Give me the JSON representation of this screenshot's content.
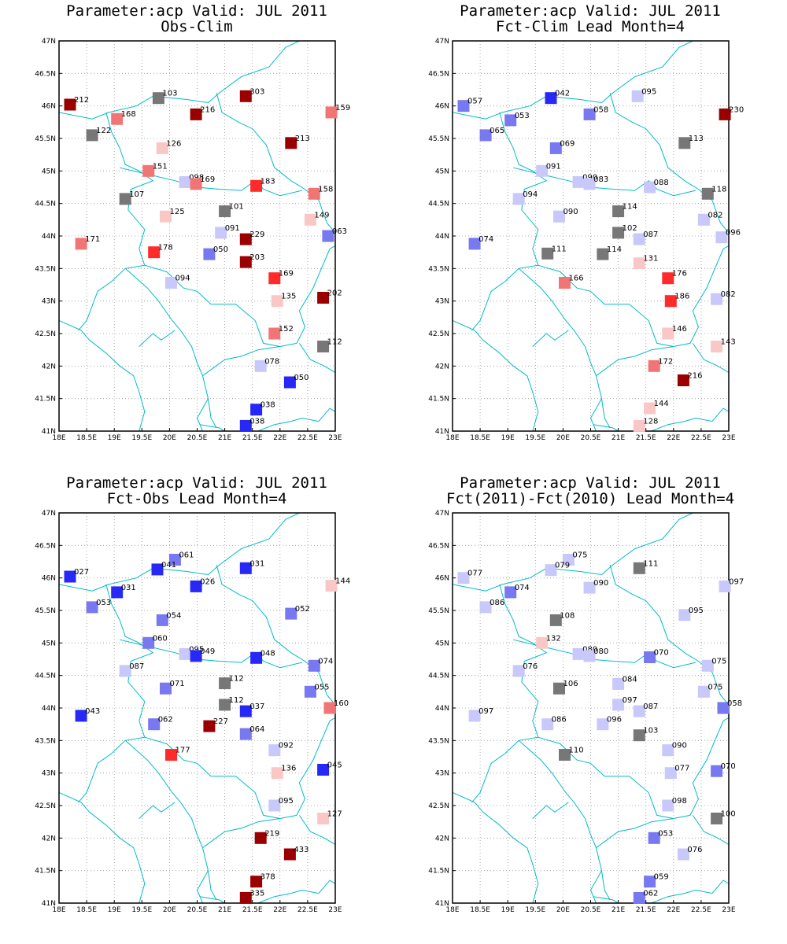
{
  "colors": {
    "coast": "#00bcc8",
    "grid": "#9a9a9a",
    "scale": {
      "dred": "#9a0000",
      "red": "#ff2a2a",
      "mred": "#f27575",
      "lred": "#fac7c7",
      "gray": "#777777",
      "lblue": "#c8c8fa",
      "mblue": "#7878f0",
      "blue": "#2828f6"
    }
  },
  "axes": {
    "lon_min": 18,
    "lon_max": 23,
    "lat_min": 41,
    "lat_max": 47,
    "xticks": [
      "18E",
      "18.5E",
      "19E",
      "19.5E",
      "20E",
      "20.5E",
      "21E",
      "21.5E",
      "22E",
      "22.5E",
      "23E"
    ],
    "yticks": [
      "41N",
      "41.5N",
      "42N",
      "42.5N",
      "43N",
      "43.5N",
      "44N",
      "44.5N",
      "45N",
      "45.5N",
      "46N",
      "46.5N",
      "47N"
    ]
  },
  "panels": [
    {
      "title1": "Parameter:acp Valid: JUL 2011",
      "title2": "Obs-Clim",
      "stations": [
        {
          "lon": 18.2,
          "lat": 46.02,
          "label": "212",
          "cls": "dred"
        },
        {
          "lon": 19.8,
          "lat": 46.12,
          "label": "103",
          "cls": "gray"
        },
        {
          "lon": 21.38,
          "lat": 46.15,
          "label": "303",
          "cls": "dred"
        },
        {
          "lon": 22.93,
          "lat": 45.9,
          "label": "159",
          "cls": "mred"
        },
        {
          "lon": 19.05,
          "lat": 45.8,
          "label": "168",
          "cls": "mred"
        },
        {
          "lon": 20.48,
          "lat": 45.87,
          "label": "216",
          "cls": "dred"
        },
        {
          "lon": 18.6,
          "lat": 45.55,
          "label": "122",
          "cls": "gray"
        },
        {
          "lon": 22.2,
          "lat": 45.43,
          "label": "213",
          "cls": "dred"
        },
        {
          "lon": 19.87,
          "lat": 45.35,
          "label": "126",
          "cls": "lred"
        },
        {
          "lon": 19.62,
          "lat": 45.0,
          "label": "151",
          "cls": "mred"
        },
        {
          "lon": 20.28,
          "lat": 44.83,
          "label": "098",
          "cls": "lblue"
        },
        {
          "lon": 20.48,
          "lat": 44.8,
          "label": "169",
          "cls": "mred"
        },
        {
          "lon": 21.57,
          "lat": 44.77,
          "label": "183",
          "cls": "red"
        },
        {
          "lon": 22.62,
          "lat": 44.65,
          "label": "158",
          "cls": "mred"
        },
        {
          "lon": 19.2,
          "lat": 44.57,
          "label": "107",
          "cls": "gray"
        },
        {
          "lon": 19.93,
          "lat": 44.3,
          "label": "125",
          "cls": "lred"
        },
        {
          "lon": 21.0,
          "lat": 44.38,
          "label": "101",
          "cls": "gray"
        },
        {
          "lon": 22.55,
          "lat": 44.25,
          "label": "149",
          "cls": "lred"
        },
        {
          "lon": 20.93,
          "lat": 44.05,
          "label": "091",
          "cls": "lblue"
        },
        {
          "lon": 21.38,
          "lat": 43.95,
          "label": "229",
          "cls": "dred"
        },
        {
          "lon": 22.87,
          "lat": 44.0,
          "label": "063",
          "cls": "mblue"
        },
        {
          "lon": 18.4,
          "lat": 43.88,
          "label": "171",
          "cls": "mred"
        },
        {
          "lon": 19.72,
          "lat": 43.75,
          "label": "178",
          "cls": "red"
        },
        {
          "lon": 20.72,
          "lat": 43.72,
          "label": "050",
          "cls": "mblue"
        },
        {
          "lon": 21.38,
          "lat": 43.6,
          "label": "203",
          "cls": "dred"
        },
        {
          "lon": 21.9,
          "lat": 43.35,
          "label": "169",
          "cls": "red"
        },
        {
          "lon": 20.03,
          "lat": 43.28,
          "label": "094",
          "cls": "lblue"
        },
        {
          "lon": 21.95,
          "lat": 43.0,
          "label": "135",
          "cls": "lred"
        },
        {
          "lon": 22.78,
          "lat": 43.05,
          "label": "202",
          "cls": "dred"
        },
        {
          "lon": 21.9,
          "lat": 42.5,
          "label": "152",
          "cls": "mred"
        },
        {
          "lon": 22.78,
          "lat": 42.3,
          "label": "112",
          "cls": "gray"
        },
        {
          "lon": 21.65,
          "lat": 42.0,
          "label": "078",
          "cls": "lblue"
        },
        {
          "lon": 22.18,
          "lat": 41.75,
          "label": "050",
          "cls": "blue"
        },
        {
          "lon": 21.57,
          "lat": 41.33,
          "label": "038",
          "cls": "blue"
        },
        {
          "lon": 21.38,
          "lat": 41.08,
          "label": "038",
          "cls": "blue"
        }
      ]
    },
    {
      "title1": "Parameter:acp Valid: JUL 2011",
      "title2": "Fct-Clim Lead Month=4",
      "stations": [
        {
          "lon": 18.2,
          "lat": 46.0,
          "label": "057",
          "cls": "mblue"
        },
        {
          "lon": 19.78,
          "lat": 46.12,
          "label": "042",
          "cls": "blue"
        },
        {
          "lon": 21.35,
          "lat": 46.15,
          "label": "095",
          "cls": "lblue"
        },
        {
          "lon": 22.93,
          "lat": 45.87,
          "label": "230",
          "cls": "dred"
        },
        {
          "lon": 19.05,
          "lat": 45.78,
          "label": "053",
          "cls": "mblue"
        },
        {
          "lon": 20.48,
          "lat": 45.87,
          "label": "058",
          "cls": "mblue"
        },
        {
          "lon": 18.6,
          "lat": 45.55,
          "label": "065",
          "cls": "mblue"
        },
        {
          "lon": 22.2,
          "lat": 45.43,
          "label": "113",
          "cls": "gray"
        },
        {
          "lon": 19.87,
          "lat": 45.35,
          "label": "069",
          "cls": "mblue"
        },
        {
          "lon": 19.62,
          "lat": 45.0,
          "label": "091",
          "cls": "lblue"
        },
        {
          "lon": 20.28,
          "lat": 44.83,
          "label": "090",
          "cls": "lblue"
        },
        {
          "lon": 20.48,
          "lat": 44.8,
          "label": "083",
          "cls": "lblue"
        },
        {
          "lon": 21.57,
          "lat": 44.75,
          "label": "088",
          "cls": "lblue"
        },
        {
          "lon": 22.62,
          "lat": 44.65,
          "label": "118",
          "cls": "gray"
        },
        {
          "lon": 19.2,
          "lat": 44.57,
          "label": "094",
          "cls": "lblue"
        },
        {
          "lon": 19.93,
          "lat": 44.3,
          "label": "090",
          "cls": "lblue"
        },
        {
          "lon": 21.0,
          "lat": 44.38,
          "label": "114",
          "cls": "gray"
        },
        {
          "lon": 22.55,
          "lat": 44.25,
          "label": "082",
          "cls": "lblue"
        },
        {
          "lon": 21.0,
          "lat": 44.05,
          "label": "102",
          "cls": "gray"
        },
        {
          "lon": 21.38,
          "lat": 43.95,
          "label": "087",
          "cls": "lblue"
        },
        {
          "lon": 22.87,
          "lat": 43.98,
          "label": "096",
          "cls": "lblue"
        },
        {
          "lon": 18.4,
          "lat": 43.88,
          "label": "074",
          "cls": "mblue"
        },
        {
          "lon": 19.72,
          "lat": 43.73,
          "label": "111",
          "cls": "gray"
        },
        {
          "lon": 20.72,
          "lat": 43.72,
          "label": "114",
          "cls": "gray"
        },
        {
          "lon": 21.38,
          "lat": 43.58,
          "label": "131",
          "cls": "lred"
        },
        {
          "lon": 21.9,
          "lat": 43.35,
          "label": "176",
          "cls": "red"
        },
        {
          "lon": 20.03,
          "lat": 43.28,
          "label": "166",
          "cls": "mred"
        },
        {
          "lon": 21.95,
          "lat": 43.0,
          "label": "186",
          "cls": "red"
        },
        {
          "lon": 22.78,
          "lat": 43.03,
          "label": "082",
          "cls": "lblue"
        },
        {
          "lon": 21.9,
          "lat": 42.5,
          "label": "146",
          "cls": "lred"
        },
        {
          "lon": 22.78,
          "lat": 42.3,
          "label": "143",
          "cls": "lred"
        },
        {
          "lon": 21.65,
          "lat": 42.0,
          "label": "172",
          "cls": "mred"
        },
        {
          "lon": 22.18,
          "lat": 41.78,
          "label": "216",
          "cls": "dred"
        },
        {
          "lon": 21.57,
          "lat": 41.35,
          "label": "144",
          "cls": "lred"
        },
        {
          "lon": 21.38,
          "lat": 41.08,
          "label": "128",
          "cls": "lred"
        }
      ]
    },
    {
      "title1": "Parameter:acp Valid: JUL 2011",
      "title2": "Fct-Obs Lead Month=4",
      "stations": [
        {
          "lon": 18.2,
          "lat": 46.02,
          "label": "027",
          "cls": "blue"
        },
        {
          "lon": 20.1,
          "lat": 46.28,
          "label": "061",
          "cls": "mblue"
        },
        {
          "lon": 19.78,
          "lat": 46.13,
          "label": "041",
          "cls": "blue"
        },
        {
          "lon": 21.38,
          "lat": 46.15,
          "label": "031",
          "cls": "blue"
        },
        {
          "lon": 22.93,
          "lat": 45.88,
          "label": "144",
          "cls": "lred"
        },
        {
          "lon": 19.05,
          "lat": 45.78,
          "label": "031",
          "cls": "blue"
        },
        {
          "lon": 20.48,
          "lat": 45.87,
          "label": "026",
          "cls": "blue"
        },
        {
          "lon": 18.6,
          "lat": 45.55,
          "label": "053",
          "cls": "mblue"
        },
        {
          "lon": 22.2,
          "lat": 45.45,
          "label": "052",
          "cls": "mblue"
        },
        {
          "lon": 19.87,
          "lat": 45.35,
          "label": "054",
          "cls": "mblue"
        },
        {
          "lon": 19.62,
          "lat": 45.0,
          "label": "060",
          "cls": "mblue"
        },
        {
          "lon": 20.28,
          "lat": 44.83,
          "label": "095",
          "cls": "lblue"
        },
        {
          "lon": 20.48,
          "lat": 44.8,
          "label": "049",
          "cls": "blue"
        },
        {
          "lon": 21.57,
          "lat": 44.77,
          "label": "048",
          "cls": "blue"
        },
        {
          "lon": 22.62,
          "lat": 44.65,
          "label": "074",
          "cls": "mblue"
        },
        {
          "lon": 19.2,
          "lat": 44.57,
          "label": "087",
          "cls": "lblue"
        },
        {
          "lon": 19.93,
          "lat": 44.3,
          "label": "071",
          "cls": "mblue"
        },
        {
          "lon": 21.0,
          "lat": 44.38,
          "label": "112",
          "cls": "gray"
        },
        {
          "lon": 22.55,
          "lat": 44.25,
          "label": "055",
          "cls": "mblue"
        },
        {
          "lon": 21.0,
          "lat": 44.05,
          "label": "112",
          "cls": "gray"
        },
        {
          "lon": 21.38,
          "lat": 43.95,
          "label": "037",
          "cls": "blue"
        },
        {
          "lon": 22.9,
          "lat": 44.0,
          "label": "160",
          "cls": "mred"
        },
        {
          "lon": 18.4,
          "lat": 43.88,
          "label": "043",
          "cls": "blue"
        },
        {
          "lon": 19.72,
          "lat": 43.75,
          "label": "062",
          "cls": "mblue"
        },
        {
          "lon": 20.72,
          "lat": 43.72,
          "label": "227",
          "cls": "dred"
        },
        {
          "lon": 21.38,
          "lat": 43.6,
          "label": "064",
          "cls": "mblue"
        },
        {
          "lon": 21.9,
          "lat": 43.35,
          "label": "092",
          "cls": "lblue"
        },
        {
          "lon": 20.03,
          "lat": 43.28,
          "label": "177",
          "cls": "red"
        },
        {
          "lon": 21.95,
          "lat": 43.0,
          "label": "136",
          "cls": "lred"
        },
        {
          "lon": 22.78,
          "lat": 43.05,
          "label": "045",
          "cls": "blue"
        },
        {
          "lon": 21.9,
          "lat": 42.5,
          "label": "095",
          "cls": "lblue"
        },
        {
          "lon": 22.78,
          "lat": 42.3,
          "label": "127",
          "cls": "lred"
        },
        {
          "lon": 21.65,
          "lat": 42.0,
          "label": "219",
          "cls": "dred"
        },
        {
          "lon": 22.18,
          "lat": 41.75,
          "label": "433",
          "cls": "dred"
        },
        {
          "lon": 21.57,
          "lat": 41.33,
          "label": "378",
          "cls": "dred"
        },
        {
          "lon": 21.38,
          "lat": 41.08,
          "label": "335",
          "cls": "dred"
        }
      ]
    },
    {
      "title1": "Parameter:acp Valid: JUL 2011",
      "title2": "Fct(2011)-Fct(2010) Lead Month=4",
      "stations": [
        {
          "lon": 18.2,
          "lat": 46.0,
          "label": "077",
          "cls": "lblue"
        },
        {
          "lon": 20.1,
          "lat": 46.28,
          "label": "075",
          "cls": "lblue"
        },
        {
          "lon": 19.78,
          "lat": 46.12,
          "label": "079",
          "cls": "lblue"
        },
        {
          "lon": 21.38,
          "lat": 46.15,
          "label": "111",
          "cls": "gray"
        },
        {
          "lon": 22.93,
          "lat": 45.87,
          "label": "097",
          "cls": "lblue"
        },
        {
          "lon": 19.05,
          "lat": 45.78,
          "label": "074",
          "cls": "mblue"
        },
        {
          "lon": 20.48,
          "lat": 45.85,
          "label": "090",
          "cls": "lblue"
        },
        {
          "lon": 18.6,
          "lat": 45.55,
          "label": "086",
          "cls": "lblue"
        },
        {
          "lon": 22.2,
          "lat": 45.43,
          "label": "095",
          "cls": "lblue"
        },
        {
          "lon": 19.87,
          "lat": 45.35,
          "label": "108",
          "cls": "gray"
        },
        {
          "lon": 19.62,
          "lat": 45.0,
          "label": "132",
          "cls": "lred"
        },
        {
          "lon": 20.28,
          "lat": 44.83,
          "label": "080",
          "cls": "lblue"
        },
        {
          "lon": 20.48,
          "lat": 44.8,
          "label": "080",
          "cls": "lblue"
        },
        {
          "lon": 21.57,
          "lat": 44.78,
          "label": "070",
          "cls": "mblue"
        },
        {
          "lon": 22.62,
          "lat": 44.65,
          "label": "075",
          "cls": "lblue"
        },
        {
          "lon": 19.2,
          "lat": 44.57,
          "label": "076",
          "cls": "lblue"
        },
        {
          "lon": 21.0,
          "lat": 44.37,
          "label": "084",
          "cls": "lblue"
        },
        {
          "lon": 19.93,
          "lat": 44.3,
          "label": "106",
          "cls": "gray"
        },
        {
          "lon": 22.55,
          "lat": 44.25,
          "label": "075",
          "cls": "lblue"
        },
        {
          "lon": 21.0,
          "lat": 44.05,
          "label": "097",
          "cls": "lblue"
        },
        {
          "lon": 21.38,
          "lat": 43.95,
          "label": "087",
          "cls": "lblue"
        },
        {
          "lon": 22.9,
          "lat": 44.0,
          "label": "058",
          "cls": "mblue"
        },
        {
          "lon": 18.4,
          "lat": 43.88,
          "label": "097",
          "cls": "lblue"
        },
        {
          "lon": 19.72,
          "lat": 43.75,
          "label": "086",
          "cls": "lblue"
        },
        {
          "lon": 20.72,
          "lat": 43.75,
          "label": "096",
          "cls": "lblue"
        },
        {
          "lon": 21.38,
          "lat": 43.58,
          "label": "103",
          "cls": "gray"
        },
        {
          "lon": 21.9,
          "lat": 43.35,
          "label": "090",
          "cls": "lblue"
        },
        {
          "lon": 20.03,
          "lat": 43.28,
          "label": "110",
          "cls": "gray"
        },
        {
          "lon": 21.95,
          "lat": 43.0,
          "label": "077",
          "cls": "lblue"
        },
        {
          "lon": 22.78,
          "lat": 43.03,
          "label": "070",
          "cls": "mblue"
        },
        {
          "lon": 21.9,
          "lat": 42.5,
          "label": "098",
          "cls": "lblue"
        },
        {
          "lon": 22.78,
          "lat": 42.3,
          "label": "100",
          "cls": "gray"
        },
        {
          "lon": 21.65,
          "lat": 42.0,
          "label": "053",
          "cls": "mblue"
        },
        {
          "lon": 22.18,
          "lat": 41.75,
          "label": "076",
          "cls": "lblue"
        },
        {
          "lon": 21.57,
          "lat": 41.33,
          "label": "059",
          "cls": "mblue"
        },
        {
          "lon": 21.38,
          "lat": 41.08,
          "label": "062",
          "cls": "mblue"
        }
      ]
    }
  ]
}
